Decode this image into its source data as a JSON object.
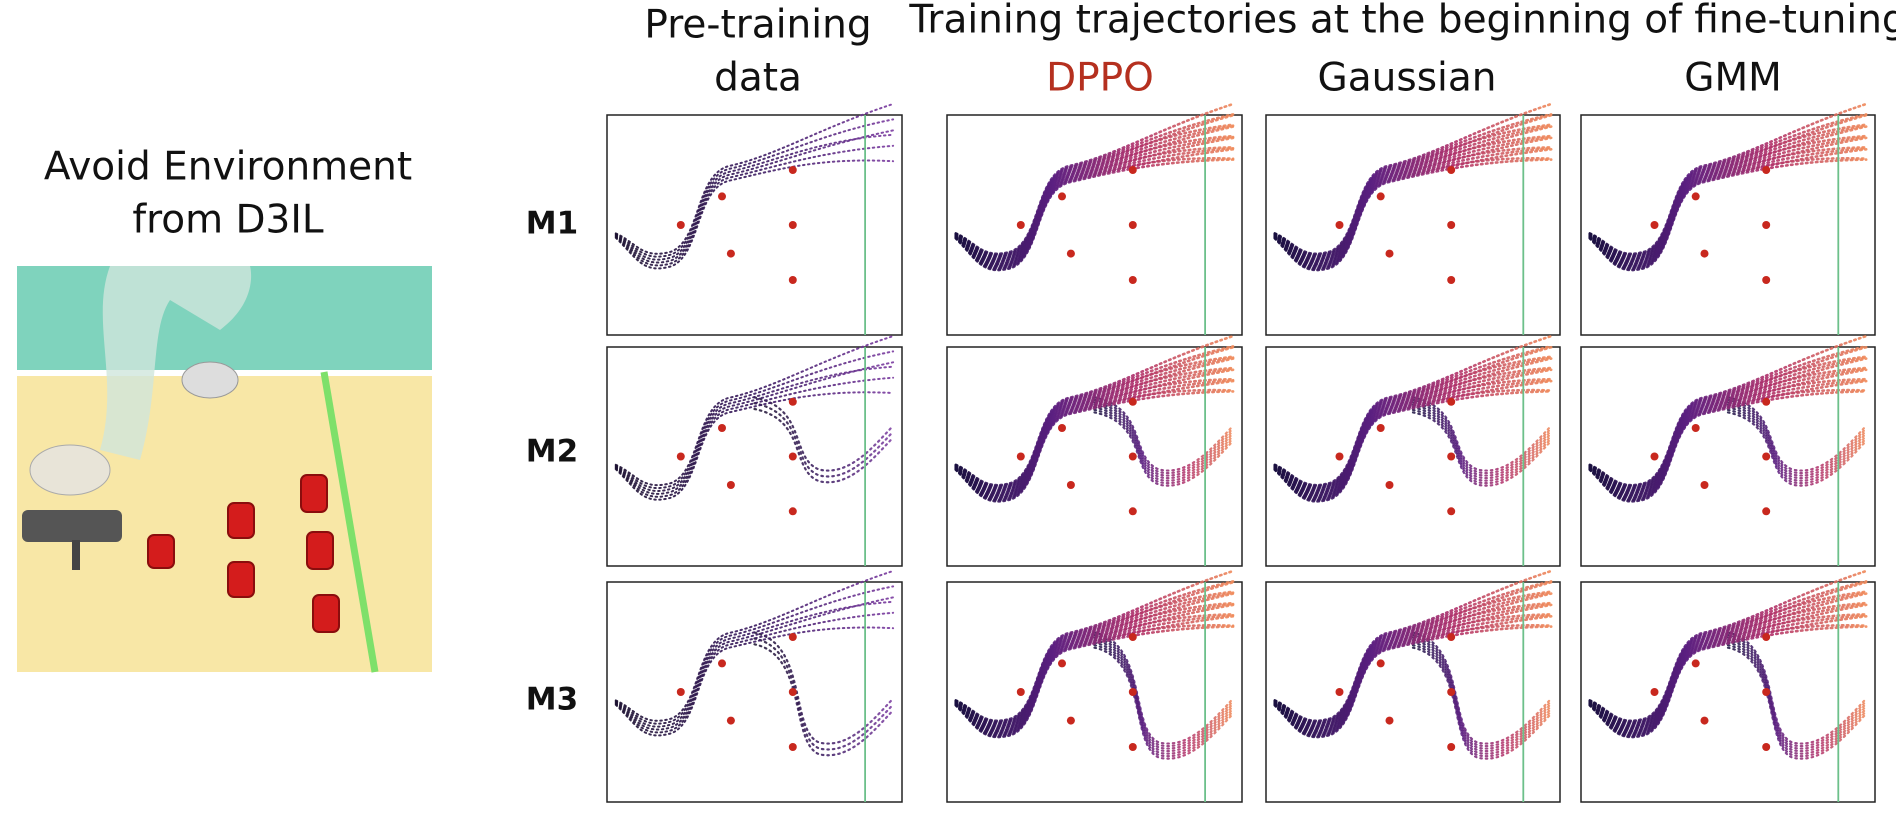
{
  "left_panel": {
    "title_lines": [
      "Avoid Environment",
      "from D3IL"
    ]
  },
  "columns": {
    "group_title": "Training trajectories at the beginning of fine-tuning",
    "pretraining_lines": [
      "Pre-training",
      "data"
    ],
    "methods": [
      "DPPO",
      "Gaussian",
      "GMM"
    ]
  },
  "rows": [
    "M1",
    "M2",
    "M3"
  ]
}
